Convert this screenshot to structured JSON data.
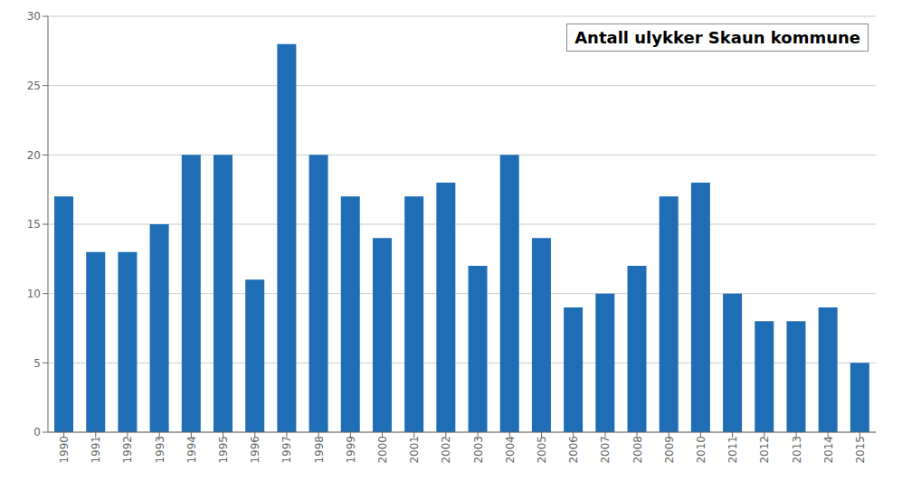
{
  "chart_data": {
    "type": "bar",
    "title": "Antall ulykker Skaun kommune",
    "categories": [
      "1990",
      "1991",
      "1992",
      "1993",
      "1994",
      "1995",
      "1996",
      "1997",
      "1998",
      "1999",
      "2000",
      "2001",
      "2002",
      "2003",
      "2004",
      "2005",
      "2006",
      "2007",
      "2008",
      "2009",
      "2010",
      "2011",
      "2012",
      "2013",
      "2014",
      "2015"
    ],
    "values": [
      17,
      13,
      13,
      15,
      20,
      20,
      11,
      28,
      20,
      17,
      14,
      17,
      18,
      12,
      20,
      14,
      9,
      10,
      12,
      17,
      18,
      10,
      8,
      8,
      9,
      5
    ],
    "color": "#1F6EB5",
    "ylim": [
      0,
      30
    ],
    "yticks": [
      0,
      5,
      10,
      15,
      20,
      25,
      30
    ],
    "grid": true
  }
}
